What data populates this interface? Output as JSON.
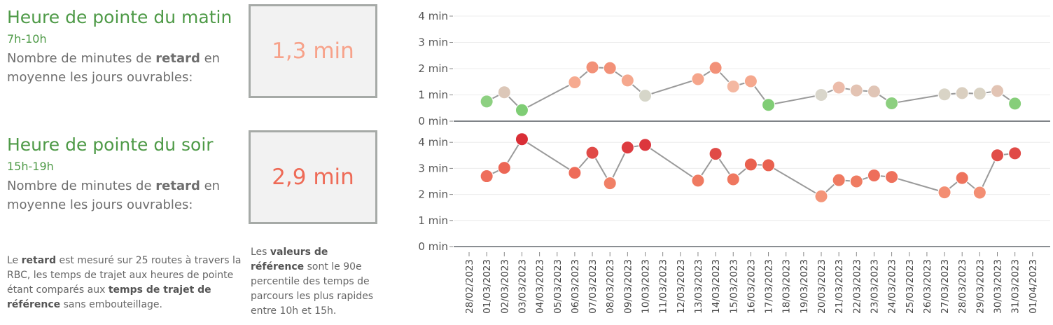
{
  "morning": {
    "title": "Heure de pointe du matin",
    "hours": "7h-10h",
    "desc_pre": "Nombre de minutes de ",
    "desc_bold": "retard",
    "desc_post": " en moyenne les jours ouvrables:",
    "value": "1,3 min",
    "value_color": "#f7a28a"
  },
  "evening": {
    "title": "Heure de pointe du soir",
    "hours": "15h-19h",
    "desc_pre": "Nombre de minutes de ",
    "desc_bold": "retard",
    "desc_post": " en moyenne les jours ouvrables:",
    "value": "2,9 min",
    "value_color": "#ee6b57"
  },
  "note_left": {
    "p1": "Le ",
    "b1": "retard",
    "p2": " est mesuré sur 25 routes à travers la RBC, les temps de trajet aux heures de pointe étant comparés aux ",
    "b2": "temps de trajet de référence",
    "p3": " sans embouteillage."
  },
  "note_right": {
    "p1": "Les ",
    "b1": "valeurs de référence",
    "p2": " sont le 90e percentile des temps de parcours les plus rapides entre 10h et 15h."
  },
  "chart_data": {
    "type": "scatter",
    "x_tick_labels": [
      "28/02/2023",
      "01/03/2023",
      "02/03/2023",
      "03/03/2023",
      "04/03/2023",
      "05/03/2023",
      "06/03/2023",
      "07/03/2023",
      "08/03/2023",
      "09/03/2023",
      "10/03/2023",
      "11/03/2023",
      "12/03/2023",
      "13/03/2023",
      "14/03/2023",
      "15/03/2023",
      "16/03/2023",
      "17/03/2023",
      "18/03/2023",
      "19/03/2023",
      "20/03/2023",
      "21/03/2023",
      "22/03/2023",
      "23/03/2023",
      "24/03/2023",
      "25/03/2023",
      "26/03/2023",
      "27/03/2023",
      "28/03/2023",
      "29/03/2023",
      "30/03/2023",
      "31/03/2023",
      "01/04/2023"
    ],
    "y_tick_labels": [
      "0 min",
      "1 min",
      "2 min",
      "3 min",
      "4 min"
    ],
    "ylim": [
      0,
      4
    ],
    "line_color": "#9a9a9a",
    "panels": [
      {
        "name": "Heure de pointe du matin",
        "points": [
          {
            "x": "01/03/2023",
            "y": 0.75,
            "color": "#8dd081"
          },
          {
            "x": "02/03/2023",
            "y": 1.1,
            "color": "#dcc7b8"
          },
          {
            "x": "03/03/2023",
            "y": 0.42,
            "color": "#7fcd75"
          },
          {
            "x": "06/03/2023",
            "y": 1.48,
            "color": "#f6aa90"
          },
          {
            "x": "07/03/2023",
            "y": 2.05,
            "color": "#f29178"
          },
          {
            "x": "08/03/2023",
            "y": 2.02,
            "color": "#f29178"
          },
          {
            "x": "09/03/2023",
            "y": 1.55,
            "color": "#f5a88e"
          },
          {
            "x": "10/03/2023",
            "y": 0.97,
            "color": "#d6d6c9"
          },
          {
            "x": "13/03/2023",
            "y": 1.6,
            "color": "#f5a58b"
          },
          {
            "x": "14/03/2023",
            "y": 2.03,
            "color": "#f29178"
          },
          {
            "x": "15/03/2023",
            "y": 1.32,
            "color": "#f4b8a2"
          },
          {
            "x": "16/03/2023",
            "y": 1.52,
            "color": "#f5a88e"
          },
          {
            "x": "17/03/2023",
            "y": 0.62,
            "color": "#80cd75"
          },
          {
            "x": "20/03/2023",
            "y": 1.0,
            "color": "#d9d6cb"
          },
          {
            "x": "21/03/2023",
            "y": 1.28,
            "color": "#ecbcaa"
          },
          {
            "x": "22/03/2023",
            "y": 1.17,
            "color": "#e3c3b3"
          },
          {
            "x": "23/03/2023",
            "y": 1.13,
            "color": "#e0c5b6"
          },
          {
            "x": "24/03/2023",
            "y": 0.68,
            "color": "#8ccf7f"
          },
          {
            "x": "27/03/2023",
            "y": 1.02,
            "color": "#d9d4c6"
          },
          {
            "x": "28/03/2023",
            "y": 1.07,
            "color": "#dacfc0"
          },
          {
            "x": "29/03/2023",
            "y": 1.05,
            "color": "#d9d2c3"
          },
          {
            "x": "30/03/2023",
            "y": 1.15,
            "color": "#e2c4b4"
          },
          {
            "x": "31/03/2023",
            "y": 0.67,
            "color": "#86ce7a"
          }
        ]
      },
      {
        "name": "Heure de pointe du soir",
        "points": [
          {
            "x": "01/03/2023",
            "y": 2.7,
            "color": "#ee6e5b"
          },
          {
            "x": "02/03/2023",
            "y": 3.02,
            "color": "#ec6655"
          },
          {
            "x": "03/03/2023",
            "y": 4.12,
            "color": "#d92e36"
          },
          {
            "x": "06/03/2023",
            "y": 2.83,
            "color": "#ee6b58"
          },
          {
            "x": "07/03/2023",
            "y": 3.6,
            "color": "#e04a47"
          },
          {
            "x": "08/03/2023",
            "y": 2.43,
            "color": "#f08066"
          },
          {
            "x": "09/03/2023",
            "y": 3.8,
            "color": "#dd3c40"
          },
          {
            "x": "10/03/2023",
            "y": 3.9,
            "color": "#dc363d"
          },
          {
            "x": "13/03/2023",
            "y": 2.53,
            "color": "#ef7a61"
          },
          {
            "x": "14/03/2023",
            "y": 3.56,
            "color": "#e04a47"
          },
          {
            "x": "15/03/2023",
            "y": 2.58,
            "color": "#ef775f"
          },
          {
            "x": "16/03/2023",
            "y": 3.15,
            "color": "#e9614f"
          },
          {
            "x": "17/03/2023",
            "y": 3.12,
            "color": "#e9614f"
          },
          {
            "x": "20/03/2023",
            "y": 1.93,
            "color": "#f49579"
          },
          {
            "x": "21/03/2023",
            "y": 2.55,
            "color": "#ef7a61"
          },
          {
            "x": "22/03/2023",
            "y": 2.5,
            "color": "#ef7c62"
          },
          {
            "x": "23/03/2023",
            "y": 2.73,
            "color": "#ee6e5b"
          },
          {
            "x": "24/03/2023",
            "y": 2.67,
            "color": "#ee715c"
          },
          {
            "x": "27/03/2023",
            "y": 2.08,
            "color": "#f38e73"
          },
          {
            "x": "28/03/2023",
            "y": 2.63,
            "color": "#ee735d"
          },
          {
            "x": "29/03/2023",
            "y": 2.07,
            "color": "#f38e73"
          },
          {
            "x": "30/03/2023",
            "y": 3.5,
            "color": "#e14d48"
          },
          {
            "x": "31/03/2023",
            "y": 3.58,
            "color": "#e04a47"
          }
        ]
      }
    ]
  }
}
